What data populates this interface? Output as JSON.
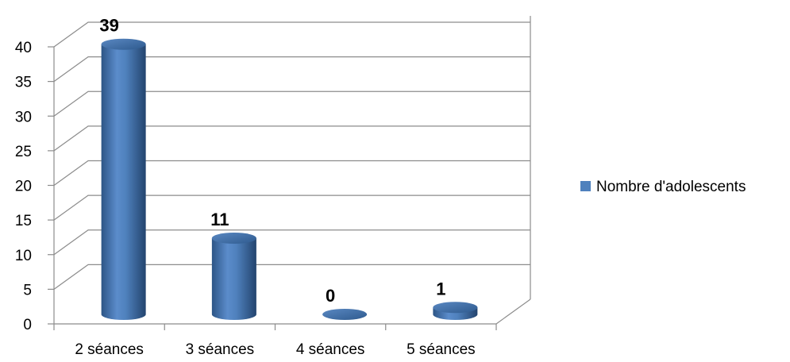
{
  "chart_data": {
    "type": "bar",
    "categories": [
      "2 séances",
      "3 séances",
      "4 séances",
      "5 séances"
    ],
    "series": [
      {
        "name": "Nombre d'adolescents",
        "values": [
          39,
          11,
          0,
          1
        ]
      }
    ],
    "data_labels": [
      "39",
      "11",
      "0",
      "1"
    ],
    "y_ticks": [
      "0",
      "5",
      "10",
      "15",
      "20",
      "25",
      "30",
      "35",
      "40"
    ],
    "ylim": [
      0,
      40
    ],
    "grid": true,
    "legend_position": "right",
    "colors": {
      "bar": "#4f81bd",
      "bar_dark": "#2c5384",
      "bar_light": "#7fa6d6"
    }
  }
}
